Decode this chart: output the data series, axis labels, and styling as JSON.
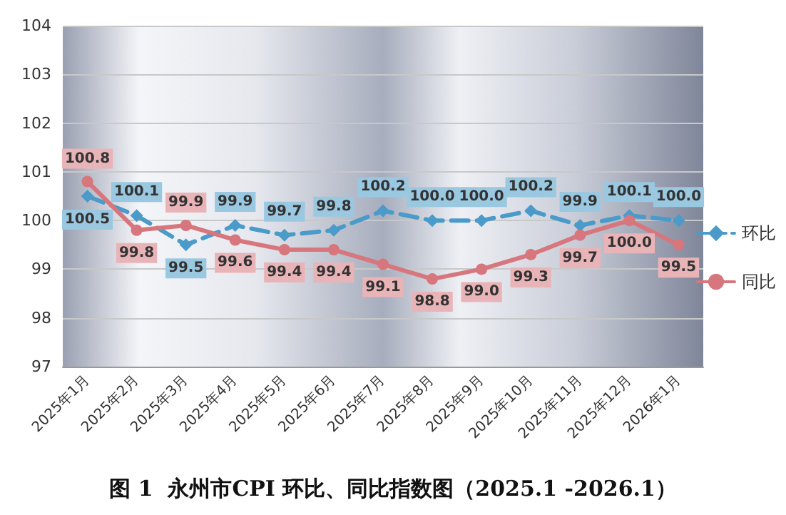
{
  "chart_data": {
    "type": "line",
    "title": "图 1  永州市CPI 环比、同比指数图（2025.1 -2026.1）",
    "categories": [
      "2025年1月",
      "2025年2月",
      "2025年3月",
      "2025年4月",
      "2025年5月",
      "2025年6月",
      "2025年7月",
      "2025年8月",
      "2025年9月",
      "2025年10月",
      "2025年11月",
      "2025年12月",
      "2026年1月"
    ],
    "series": [
      {
        "name": "环比",
        "color": "#4a9bc9",
        "marker": "diamond",
        "line_style": "dashed",
        "values": [
          100.5,
          100.1,
          99.5,
          99.9,
          99.7,
          99.8,
          100.2,
          100.0,
          100.0,
          100.2,
          99.9,
          100.1,
          100.0
        ],
        "value_labels": [
          "100.5",
          "100.1",
          "99.5",
          "99.9",
          "99.7",
          "99.8",
          "100.2",
          "100.0",
          "100.0",
          "100.2",
          "99.9",
          "100.1",
          "100.0"
        ]
      },
      {
        "name": "同比",
        "color": "#d7767c",
        "marker": "circle",
        "line_style": "solid",
        "values": [
          100.8,
          99.8,
          99.9,
          99.6,
          99.4,
          99.4,
          99.1,
          98.8,
          99.0,
          99.3,
          99.7,
          100.0,
          99.5
        ],
        "value_labels": [
          "100.8",
          "99.8",
          "99.9",
          "99.6",
          "99.4",
          "99.4",
          "99.1",
          "98.8",
          "99.0",
          "99.3",
          "99.7",
          "100.0",
          "99.5"
        ]
      }
    ],
    "ylim": [
      97,
      104
    ],
    "yticks": [
      97,
      98,
      99,
      100,
      101,
      102,
      103,
      104
    ],
    "grid": "y",
    "legend": "right"
  }
}
